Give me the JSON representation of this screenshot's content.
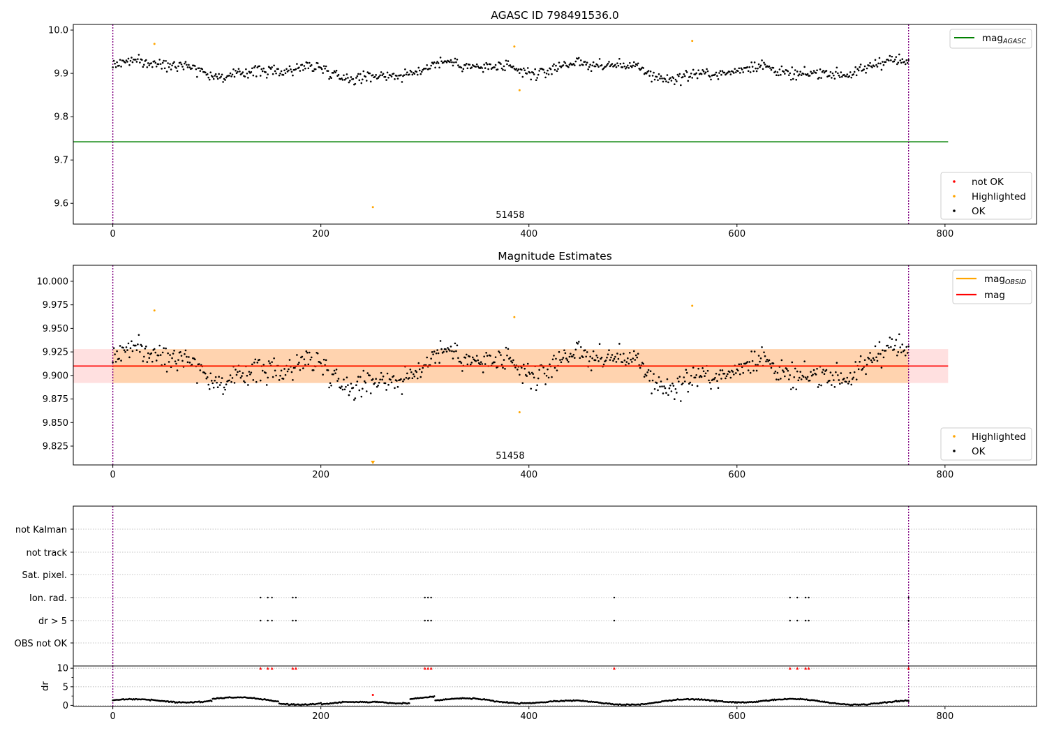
{
  "chart_data": [
    {
      "name": "agasc_mag",
      "type": "scatter",
      "title": "AGASC ID 798491536.0",
      "xlim": [
        -38,
        888
      ],
      "ylim": [
        9.552,
        10.013
      ],
      "yticks": [
        9.6,
        9.7,
        9.8,
        9.9,
        10.0
      ],
      "yticklabels": [
        "9.6",
        "9.7",
        "9.8",
        "9.9",
        "10.0"
      ],
      "xticks": [
        0,
        200,
        400,
        600,
        800
      ],
      "xticklabels": [
        "0",
        "200",
        "400",
        "600",
        "800"
      ],
      "obsid_label": {
        "text": "51458",
        "x": 382
      },
      "obs_boundaries": [
        0,
        765
      ],
      "mag_agasc": {
        "value": 9.742,
        "x_range": [
          -38,
          803
        ]
      },
      "highlighted_points": [
        [
          40,
          9.968
        ],
        [
          250,
          9.591
        ],
        [
          386,
          9.962
        ],
        [
          391,
          9.861
        ],
        [
          557,
          9.975
        ]
      ],
      "ok_base": 9.908,
      "legend_upper": {
        "placement": "upper right",
        "entries": [
          {
            "label": "mag",
            "sub": "AGASC",
            "color": "#008000"
          }
        ]
      },
      "legend_lower": {
        "placement": "lower right",
        "entries": [
          {
            "label": "not OK",
            "color": "#ff0000"
          },
          {
            "label": "Highlighted",
            "color": "#ffa500"
          },
          {
            "label": "OK",
            "color": "#000000"
          }
        ]
      }
    },
    {
      "name": "mag_estimates",
      "type": "scatter",
      "title": "Magnitude Estimates",
      "xlim": [
        -38,
        888
      ],
      "ylim": [
        9.805,
        10.017
      ],
      "yticks": [
        9.825,
        9.85,
        9.875,
        9.9,
        9.925,
        9.95,
        9.975,
        10.0
      ],
      "yticklabels": [
        "9.825",
        "9.850",
        "9.875",
        "9.900",
        "9.925",
        "9.950",
        "9.975",
        "10.000"
      ],
      "xticks": [
        0,
        200,
        400,
        600,
        800
      ],
      "xticklabels": [
        "0",
        "200",
        "400",
        "600",
        "800"
      ],
      "obsid_label": {
        "text": "51458",
        "x": 382
      },
      "obs_boundaries": [
        0,
        765
      ],
      "mag_obsid": {
        "value": 9.91,
        "band": [
          9.892,
          9.928
        ],
        "x_range": [
          0,
          765
        ]
      },
      "mag": {
        "value": 9.91,
        "band": [
          9.892,
          9.928
        ],
        "x_range": [
          -38,
          803
        ]
      },
      "highlighted_points": [
        [
          40,
          9.969
        ],
        [
          386,
          9.962
        ],
        [
          391,
          9.861
        ],
        [
          557,
          9.974
        ]
      ],
      "offscale_marker": {
        "x": 250
      },
      "ok_base": 9.908,
      "legend_upper": {
        "placement": "upper right",
        "entries": [
          {
            "label": "mag",
            "sub": "OBSID",
            "color": "#ffa500"
          },
          {
            "label": "mag",
            "sub": "",
            "color": "#ff0000"
          }
        ]
      },
      "legend_lower": {
        "placement": "lower right",
        "entries": [
          {
            "label": "Highlighted",
            "color": "#ffa500"
          },
          {
            "label": "OK",
            "color": "#000000"
          }
        ]
      }
    },
    {
      "name": "flags",
      "type": "scatter",
      "xlim": [
        -38,
        888
      ],
      "categories": [
        "not Kalman",
        "not track",
        "Sat. pixel.",
        "Ion. rad.",
        "dr > 5",
        "OBS not OK"
      ],
      "flag_events": {
        "Ion. rad.": [
          142,
          149,
          153,
          173,
          176,
          300,
          303,
          306,
          482,
          651,
          658,
          666,
          669,
          765
        ],
        "dr > 5": [
          142,
          149,
          153,
          173,
          176,
          300,
          303,
          306,
          482,
          651,
          658,
          666,
          669,
          765
        ]
      },
      "obs_boundaries": [
        0,
        765
      ]
    },
    {
      "name": "dr",
      "type": "scatter",
      "ylabel": "dr",
      "xlim": [
        -38,
        888
      ],
      "ylim": [
        -0.3,
        10.6
      ],
      "yticks": [
        0,
        5,
        10
      ],
      "yticklabels": [
        "0",
        "5",
        "10"
      ],
      "xticks": [
        0,
        200,
        400,
        600,
        800
      ],
      "xticklabels": [
        "0",
        "200",
        "400",
        "600",
        "800"
      ],
      "clipped_points": [
        142,
        149,
        153,
        173,
        176,
        300,
        303,
        306,
        482,
        651,
        658,
        666,
        669,
        765
      ],
      "highlighted_point": [
        250,
        2.8
      ],
      "obs_boundaries": [
        0,
        765
      ]
    }
  ]
}
